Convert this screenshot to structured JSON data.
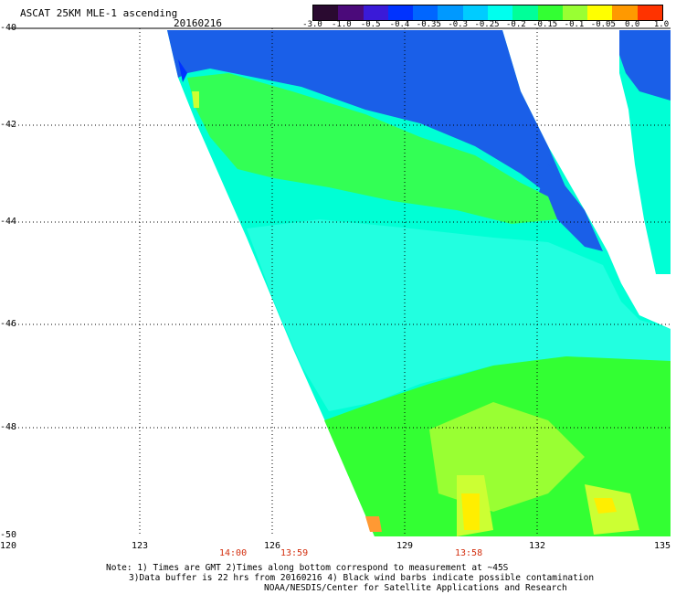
{
  "header": {
    "title": "ASCAT 25KM MLE-1 ascending",
    "date": "20160216"
  },
  "colorbar": {
    "tick_labels": [
      "-3.0",
      "-1.0",
      "-0.5",
      "-0.4",
      "-0.35",
      "-0.3",
      "-0.25",
      "-0.2",
      "-0.15",
      "-0.1",
      "-0.05",
      "0.0",
      "1.0"
    ],
    "colors": [
      "#2a0a30",
      "#4b0a7a",
      "#3a1ad8",
      "#0033ff",
      "#0066ff",
      "#0099ff",
      "#00ccff",
      "#00ffee",
      "#00ff99",
      "#33ff33",
      "#99ff33",
      "#ffff00",
      "#ff9900",
      "#ff3300"
    ]
  },
  "axes": {
    "lat_labels": [
      "-40",
      "-42",
      "-44",
      "-46",
      "-48",
      "-50"
    ],
    "lon_labels": [
      "120",
      "123",
      "126",
      "129",
      "132",
      "135"
    ],
    "time_labels": [
      "14:00",
      "13:59",
      "13:58"
    ]
  },
  "notes": {
    "line1": "Note: 1) Times are GMT 2)Times along bottom correspond to measurement at ~45S",
    "line2": "3)Data buffer is 22 hrs from 20160216 4) Black wind barbs indicate possible contamination",
    "line3": "NOAA/NESDIS/Center for Satellite Applications and Research"
  },
  "colors": {
    "blue": "#1a5fe8",
    "deep_blue": "#0033ff",
    "cyan": "#00ffee",
    "green": "#33ff33",
    "yellow_green": "#99ff33",
    "yellow": "#ffff00",
    "time_red": "#d32f0f"
  }
}
